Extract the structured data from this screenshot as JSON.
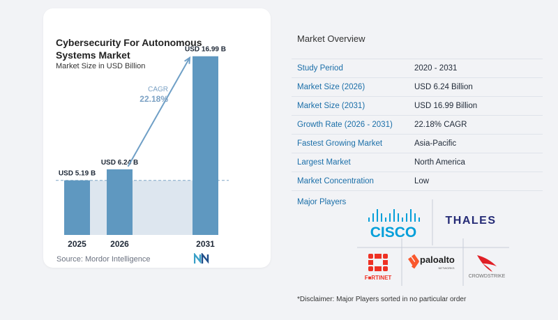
{
  "chart_data": {
    "type": "bar",
    "title": "Cybersecurity For Autonomous Systems Market",
    "subtitle": "Market Size in USD Billion",
    "categories": [
      "2025",
      "2026",
      "2031"
    ],
    "values": [
      5.19,
      6.24,
      16.99
    ],
    "value_labels": [
      "USD 5.19 B",
      "USD 6.24 B",
      "USD 16.99 B"
    ],
    "cagr_label": "CAGR",
    "cagr_value": "22.18%",
    "ylim": [
      0,
      17.5
    ],
    "grid": false,
    "colors": {
      "bar": "#5f98c0",
      "reference_band": "#dde6ef",
      "reference_line": "#7fa6c6",
      "arrow": "#6f9fc6",
      "cagr_text": "#7ba1c4"
    }
  },
  "source": "Source: Mordor Intelligence",
  "overview": {
    "title": "Market Overview",
    "rows": [
      {
        "label": "Study Period",
        "value": "2020 - 2031"
      },
      {
        "label": "Market Size (2026)",
        "value": "USD 6.24 Billion"
      },
      {
        "label": "Market Size (2031)",
        "value": "USD 16.99 Billion"
      },
      {
        "label": "Growth Rate (2026 - 2031)",
        "value": "22.18% CAGR"
      },
      {
        "label": "Fastest Growing Market",
        "value": "Asia-Pacific"
      },
      {
        "label": "Largest Market",
        "value": "North America"
      },
      {
        "label": "Market Concentration",
        "value": "Low"
      }
    ]
  },
  "players": {
    "title": "Major Players",
    "logos": [
      {
        "name": "cisco-logo",
        "text": "CISCO",
        "color": "#049fd9"
      },
      {
        "name": "thales-logo",
        "text": "THALES",
        "color": "#242a75"
      },
      {
        "name": "fortinet-logo",
        "text": "F■RTINET",
        "color": "#ee3124"
      },
      {
        "name": "paloalto-logo",
        "text": "paloalto",
        "subtext": "NETWORKS",
        "color": "#fa582d"
      },
      {
        "name": "crowdstrike-logo",
        "text": "CROWDSTRIKE",
        "color": "#e01f26"
      }
    ]
  },
  "disclaimer": "*Disclaimer: Major Players sorted in no particular order"
}
